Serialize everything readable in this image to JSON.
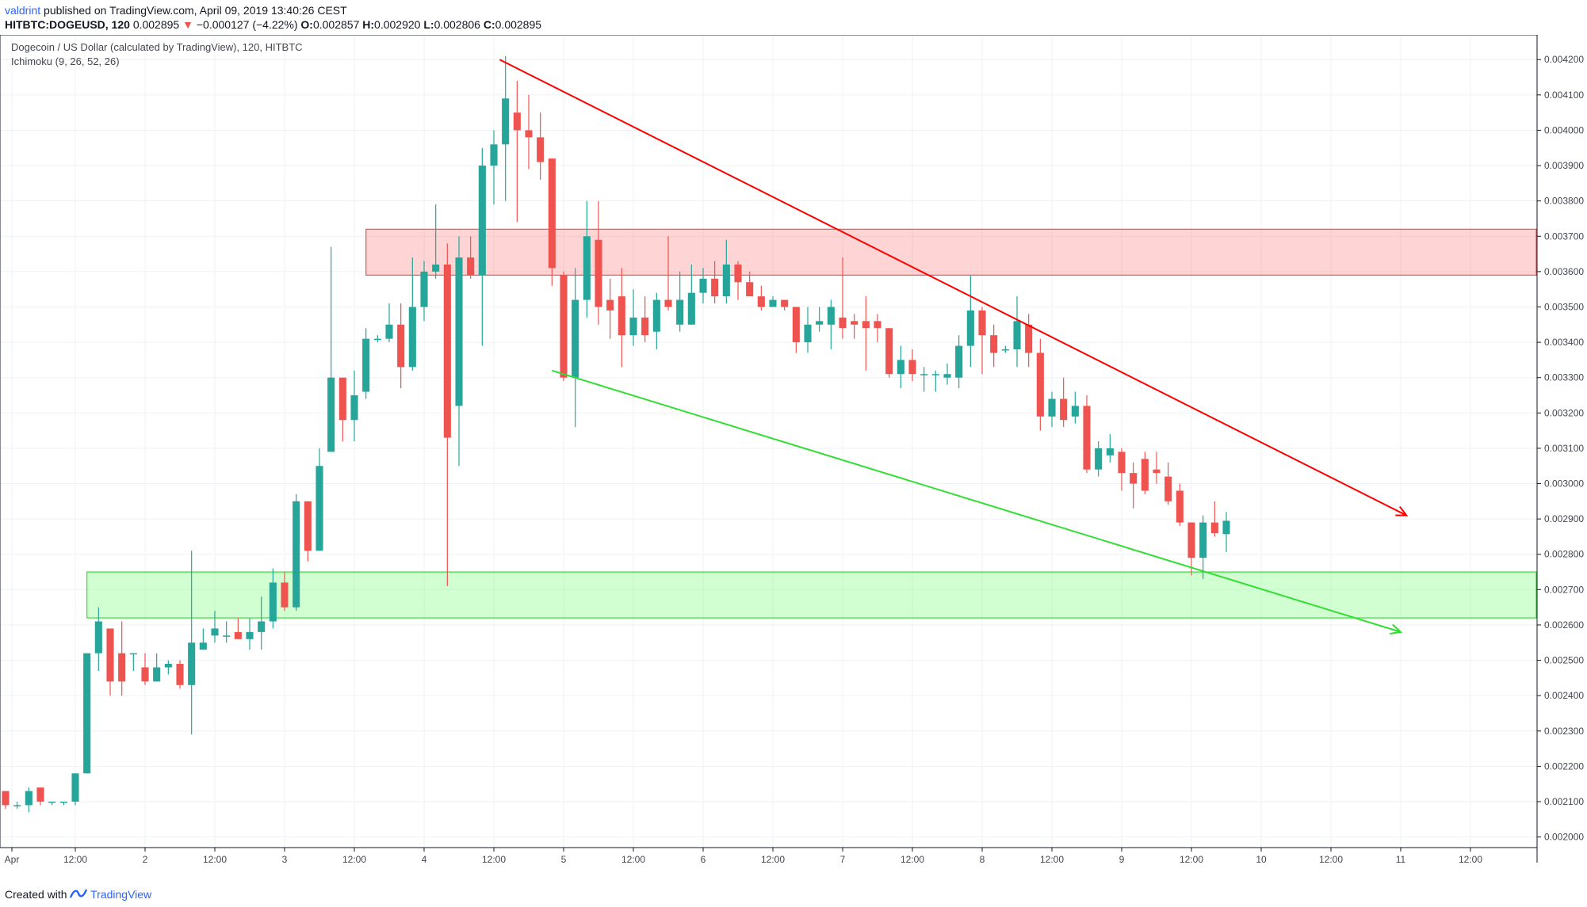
{
  "header": {
    "author": "valdrint",
    "published": "published on TradingView.com, April 09, 2019 13:40:26 CEST",
    "symbol": "HITBTC:DOGEUSD, 120",
    "last": "0.002895",
    "change": "−0.000127 (−4.22%)",
    "open_label": "O:",
    "open": "0.002857",
    "high_label": "H:",
    "high": "0.002920",
    "low_label": "L:",
    "low": "0.002806",
    "close_label": "C:",
    "close": "0.002895"
  },
  "pane": {
    "title": "Dogecoin / US Dollar (calculated by TradingView), 120, HITBTC",
    "indicator": "Ichimoku (9, 26, 52, 26)"
  },
  "footer": {
    "created_with": "Created with",
    "brand": "TradingView"
  },
  "colors": {
    "up": "#26a69a",
    "down": "#ef5350",
    "resistance_line": "#ff0000",
    "support_line": "#33dd33",
    "resistance_zone": "rgba(255,82,82,0.25)",
    "support_zone": "rgba(76,255,76,0.25)",
    "grid": "#eef1f5",
    "axis_text": "#434651"
  },
  "chart_data": {
    "type": "candlestick",
    "title": "Dogecoin / US Dollar (calculated by TradingView), 120, HITBTC",
    "interval_hours": 2,
    "x_ticks": [
      "Apr",
      "12:00",
      "2",
      "12:00",
      "3",
      "12:00",
      "4",
      "12:00",
      "5",
      "12:00",
      "6",
      "12:00",
      "7",
      "12:00",
      "8",
      "12:00",
      "9",
      "12:00",
      "10",
      "12:00",
      "11",
      "12:00"
    ],
    "y_ticks": [
      "0.002000",
      "0.002100",
      "0.002200",
      "0.002300",
      "0.002400",
      "0.002500",
      "0.002600",
      "0.002700",
      "0.002800",
      "0.002900",
      "0.003000",
      "0.003100",
      "0.003200",
      "0.003300",
      "0.003400",
      "0.003500",
      "0.003600",
      "0.003700",
      "0.003800",
      "0.003900",
      "0.004000",
      "0.004100",
      "0.004200"
    ],
    "ylim": [
      0.00197,
      0.00427
    ],
    "x_start": "2019-04-01 00:00",
    "x_end": "2019-04-11 18:00",
    "grid": true,
    "candles": [
      [
        "2019-04-01 00:00",
        0.00213,
        0.00213,
        0.00208,
        0.00209
      ],
      [
        "2019-04-01 02:00",
        0.00209,
        0.0021,
        0.00208,
        0.00209
      ],
      [
        "2019-04-01 04:00",
        0.00209,
        0.00214,
        0.00207,
        0.00213
      ],
      [
        "2019-04-01 06:00",
        0.00214,
        0.00214,
        0.00209,
        0.0021
      ],
      [
        "2019-04-01 08:00",
        0.0021,
        0.0021,
        0.00209,
        0.0021
      ],
      [
        "2019-04-01 10:00",
        0.0021,
        0.0021,
        0.00209,
        0.0021
      ],
      [
        "2019-04-01 12:00",
        0.0021,
        0.00218,
        0.00209,
        0.00218
      ],
      [
        "2019-04-01 14:00",
        0.00218,
        0.00252,
        0.00218,
        0.00252
      ],
      [
        "2019-04-01 16:00",
        0.00252,
        0.00265,
        0.00247,
        0.00261
      ],
      [
        "2019-04-01 18:00",
        0.00259,
        0.00259,
        0.0024,
        0.00244
      ],
      [
        "2019-04-01 20:00",
        0.00252,
        0.00261,
        0.0024,
        0.00244
      ],
      [
        "2019-04-01 22:00",
        0.00252,
        0.00252,
        0.00247,
        0.00252
      ],
      [
        "2019-04-02 00:00",
        0.00248,
        0.00252,
        0.00243,
        0.00244
      ],
      [
        "2019-04-02 02:00",
        0.00244,
        0.00252,
        0.00244,
        0.00248
      ],
      [
        "2019-04-02 04:00",
        0.00248,
        0.0025,
        0.00246,
        0.00249
      ],
      [
        "2019-04-02 06:00",
        0.00249,
        0.0025,
        0.00242,
        0.00243
      ],
      [
        "2019-04-02 08:00",
        0.00243,
        0.00281,
        0.00229,
        0.00255
      ],
      [
        "2019-04-02 10:00",
        0.00253,
        0.00259,
        0.00253,
        0.00255
      ],
      [
        "2019-04-02 12:00",
        0.00257,
        0.00264,
        0.00255,
        0.00259
      ],
      [
        "2019-04-02 14:00",
        0.00257,
        0.00261,
        0.00255,
        0.00257
      ],
      [
        "2019-04-02 16:00",
        0.00258,
        0.00262,
        0.00256,
        0.00256
      ],
      [
        "2019-04-02 18:00",
        0.00256,
        0.00262,
        0.00253,
        0.00258
      ],
      [
        "2019-04-02 20:00",
        0.00258,
        0.00268,
        0.00253,
        0.00261
      ],
      [
        "2019-04-02 22:00",
        0.00261,
        0.00276,
        0.00259,
        0.00272
      ],
      [
        "2019-04-03 00:00",
        0.00272,
        0.00275,
        0.00264,
        0.00265
      ],
      [
        "2019-04-03 02:00",
        0.00265,
        0.00297,
        0.00264,
        0.00295
      ],
      [
        "2019-04-03 04:00",
        0.00295,
        0.00295,
        0.00278,
        0.00281
      ],
      [
        "2019-04-03 06:00",
        0.00281,
        0.0031,
        0.00281,
        0.00305
      ],
      [
        "2019-04-03 08:00",
        0.00309,
        0.00367,
        0.00309,
        0.0033
      ],
      [
        "2019-04-03 10:00",
        0.0033,
        0.0033,
        0.00312,
        0.00318
      ],
      [
        "2019-04-03 12:00",
        0.00318,
        0.00332,
        0.00312,
        0.00325
      ],
      [
        "2019-04-03 14:00",
        0.00326,
        0.00344,
        0.00324,
        0.00341
      ],
      [
        "2019-04-03 16:00",
        0.00341,
        0.00342,
        0.0034,
        0.00341
      ],
      [
        "2019-04-03 18:00",
        0.00341,
        0.00351,
        0.0034,
        0.00345
      ],
      [
        "2019-04-03 20:00",
        0.00345,
        0.00351,
        0.00327,
        0.00333
      ],
      [
        "2019-04-03 22:00",
        0.00333,
        0.00364,
        0.00332,
        0.0035
      ],
      [
        "2019-04-04 00:00",
        0.0035,
        0.00363,
        0.00346,
        0.0036
      ],
      [
        "2019-04-04 02:00",
        0.0036,
        0.00379,
        0.00358,
        0.00362
      ],
      [
        "2019-04-04 04:00",
        0.00362,
        0.00368,
        0.00271,
        0.00313
      ],
      [
        "2019-04-04 06:00",
        0.00322,
        0.0037,
        0.00305,
        0.00364
      ],
      [
        "2019-04-04 08:00",
        0.00364,
        0.0037,
        0.00358,
        0.00359
      ],
      [
        "2019-04-04 10:00",
        0.00359,
        0.00395,
        0.00339,
        0.0039
      ],
      [
        "2019-04-04 12:00",
        0.0039,
        0.004,
        0.00379,
        0.00396
      ],
      [
        "2019-04-04 14:00",
        0.00396,
        0.00421,
        0.0038,
        0.00409
      ],
      [
        "2019-04-04 16:00",
        0.00405,
        0.00414,
        0.00374,
        0.004
      ],
      [
        "2019-04-04 18:00",
        0.004,
        0.0041,
        0.00389,
        0.00398
      ],
      [
        "2019-04-04 20:00",
        0.00398,
        0.00405,
        0.00386,
        0.00391
      ],
      [
        "2019-04-04 22:00",
        0.00392,
        0.00392,
        0.00356,
        0.00361
      ],
      [
        "2019-04-05 00:00",
        0.00359,
        0.0036,
        0.00329,
        0.0033
      ],
      [
        "2019-04-05 02:00",
        0.0033,
        0.00361,
        0.00316,
        0.00352
      ],
      [
        "2019-04-05 04:00",
        0.00352,
        0.0038,
        0.00347,
        0.0037
      ],
      [
        "2019-04-05 06:00",
        0.00369,
        0.0038,
        0.00345,
        0.0035
      ],
      [
        "2019-04-05 08:00",
        0.00352,
        0.00358,
        0.00341,
        0.00349
      ],
      [
        "2019-04-05 10:00",
        0.00353,
        0.00361,
        0.00333,
        0.00342
      ],
      [
        "2019-04-05 12:00",
        0.00342,
        0.00355,
        0.00339,
        0.00347
      ],
      [
        "2019-04-05 14:00",
        0.00347,
        0.00353,
        0.0034,
        0.00342
      ],
      [
        "2019-04-05 16:00",
        0.00343,
        0.00354,
        0.00338,
        0.00352
      ],
      [
        "2019-04-05 18:00",
        0.00352,
        0.0037,
        0.00349,
        0.0035
      ],
      [
        "2019-04-05 20:00",
        0.00345,
        0.0036,
        0.00343,
        0.00352
      ],
      [
        "2019-04-05 22:00",
        0.00345,
        0.00362,
        0.00345,
        0.00354
      ],
      [
        "2019-04-06 00:00",
        0.00354,
        0.00361,
        0.00351,
        0.00358
      ],
      [
        "2019-04-06 02:00",
        0.00358,
        0.00363,
        0.00351,
        0.00353
      ],
      [
        "2019-04-06 04:00",
        0.00353,
        0.00369,
        0.00351,
        0.00362
      ],
      [
        "2019-04-06 06:00",
        0.00362,
        0.00363,
        0.00352,
        0.00357
      ],
      [
        "2019-04-06 08:00",
        0.00357,
        0.0036,
        0.00353,
        0.00353
      ],
      [
        "2019-04-06 10:00",
        0.00353,
        0.00356,
        0.00349,
        0.0035
      ],
      [
        "2019-04-06 12:00",
        0.0035,
        0.00353,
        0.0035,
        0.00352
      ],
      [
        "2019-04-06 14:00",
        0.00352,
        0.00352,
        0.00349,
        0.0035
      ],
      [
        "2019-04-06 16:00",
        0.0035,
        0.0035,
        0.00337,
        0.0034
      ],
      [
        "2019-04-06 18:00",
        0.0034,
        0.0035,
        0.00337,
        0.00345
      ],
      [
        "2019-04-06 20:00",
        0.00345,
        0.0035,
        0.00343,
        0.00346
      ],
      [
        "2019-04-06 22:00",
        0.00345,
        0.00352,
        0.00338,
        0.0035
      ],
      [
        "2019-04-07 00:00",
        0.00347,
        0.00364,
        0.00341,
        0.00344
      ],
      [
        "2019-04-07 02:00",
        0.00346,
        0.00348,
        0.00341,
        0.00345
      ],
      [
        "2019-04-07 04:00",
        0.00346,
        0.00353,
        0.00332,
        0.00344
      ],
      [
        "2019-04-07 06:00",
        0.00346,
        0.00348,
        0.0034,
        0.00344
      ],
      [
        "2019-04-07 08:00",
        0.00344,
        0.00344,
        0.0033,
        0.00331
      ],
      [
        "2019-04-07 10:00",
        0.00331,
        0.00339,
        0.00327,
        0.00335
      ],
      [
        "2019-04-07 12:00",
        0.00335,
        0.00338,
        0.00329,
        0.00331
      ],
      [
        "2019-04-07 14:00",
        0.00331,
        0.00333,
        0.00326,
        0.00331
      ],
      [
        "2019-04-07 16:00",
        0.00331,
        0.00332,
        0.00326,
        0.00331
      ],
      [
        "2019-04-07 18:00",
        0.0033,
        0.00334,
        0.00328,
        0.00331
      ],
      [
        "2019-04-07 20:00",
        0.0033,
        0.00342,
        0.00327,
        0.00339
      ],
      [
        "2019-04-07 22:00",
        0.00339,
        0.00359,
        0.00333,
        0.00349
      ],
      [
        "2019-04-08 00:00",
        0.00349,
        0.0035,
        0.00331,
        0.00342
      ],
      [
        "2019-04-08 02:00",
        0.00342,
        0.00345,
        0.00333,
        0.00337
      ],
      [
        "2019-04-08 04:00",
        0.00338,
        0.00339,
        0.00337,
        0.00338
      ],
      [
        "2019-04-08 06:00",
        0.00338,
        0.00353,
        0.00333,
        0.00346
      ],
      [
        "2019-04-08 08:00",
        0.00345,
        0.00348,
        0.00333,
        0.00337
      ],
      [
        "2019-04-08 10:00",
        0.00337,
        0.00341,
        0.00315,
        0.00319
      ],
      [
        "2019-04-08 12:00",
        0.00319,
        0.00326,
        0.00316,
        0.00324
      ],
      [
        "2019-04-08 14:00",
        0.00324,
        0.0033,
        0.00316,
        0.00318
      ],
      [
        "2019-04-08 16:00",
        0.00319,
        0.00326,
        0.00317,
        0.00322
      ],
      [
        "2019-04-08 18:00",
        0.00322,
        0.00325,
        0.00303,
        0.00304
      ],
      [
        "2019-04-08 20:00",
        0.00304,
        0.00312,
        0.00302,
        0.0031
      ],
      [
        "2019-04-08 22:00",
        0.00308,
        0.00314,
        0.00306,
        0.0031
      ],
      [
        "2019-04-09 00:00",
        0.00309,
        0.0031,
        0.00298,
        0.00303
      ],
      [
        "2019-04-09 02:00",
        0.00303,
        0.00306,
        0.00293,
        0.003
      ],
      [
        "2019-04-09 04:00",
        0.00307,
        0.00309,
        0.00297,
        0.00298
      ],
      [
        "2019-04-09 06:00",
        0.00304,
        0.00309,
        0.003,
        0.00303
      ],
      [
        "2019-04-09 08:00",
        0.00302,
        0.00306,
        0.00294,
        0.00295
      ],
      [
        "2019-04-09 10:00",
        0.00298,
        0.003,
        0.00288,
        0.00289
      ],
      [
        "2019-04-09 12:00",
        0.00289,
        0.00289,
        0.00274,
        0.00279
      ],
      [
        "2019-04-09 14:00",
        0.00279,
        0.00291,
        0.00273,
        0.00289
      ],
      [
        "2019-04-09 16:00",
        0.00289,
        0.00295,
        0.00285,
        0.00286
      ],
      [
        "2019-04-09 18:00",
        0.002857,
        0.00292,
        0.002806,
        0.002895
      ]
    ],
    "zones": [
      {
        "type": "resistance",
        "from": "2019-04-03 14:00",
        "to": "2019-04-11 18:00",
        "low": 0.00359,
        "high": 0.00372
      },
      {
        "type": "support",
        "from": "2019-04-01 14:00",
        "to": "2019-04-11 18:00",
        "low": 0.00262,
        "high": 0.00275
      }
    ],
    "trendlines": [
      {
        "type": "resistance",
        "from": [
          "2019-04-04 13:00",
          0.0042
        ],
        "to": [
          "2019-04-11 01:00",
          0.00291
        ],
        "arrow": true
      },
      {
        "type": "support",
        "from": [
          "2019-04-04 22:00",
          0.00332
        ],
        "to": [
          "2019-04-11 00:00",
          0.00258
        ],
        "arrow": true
      }
    ]
  }
}
